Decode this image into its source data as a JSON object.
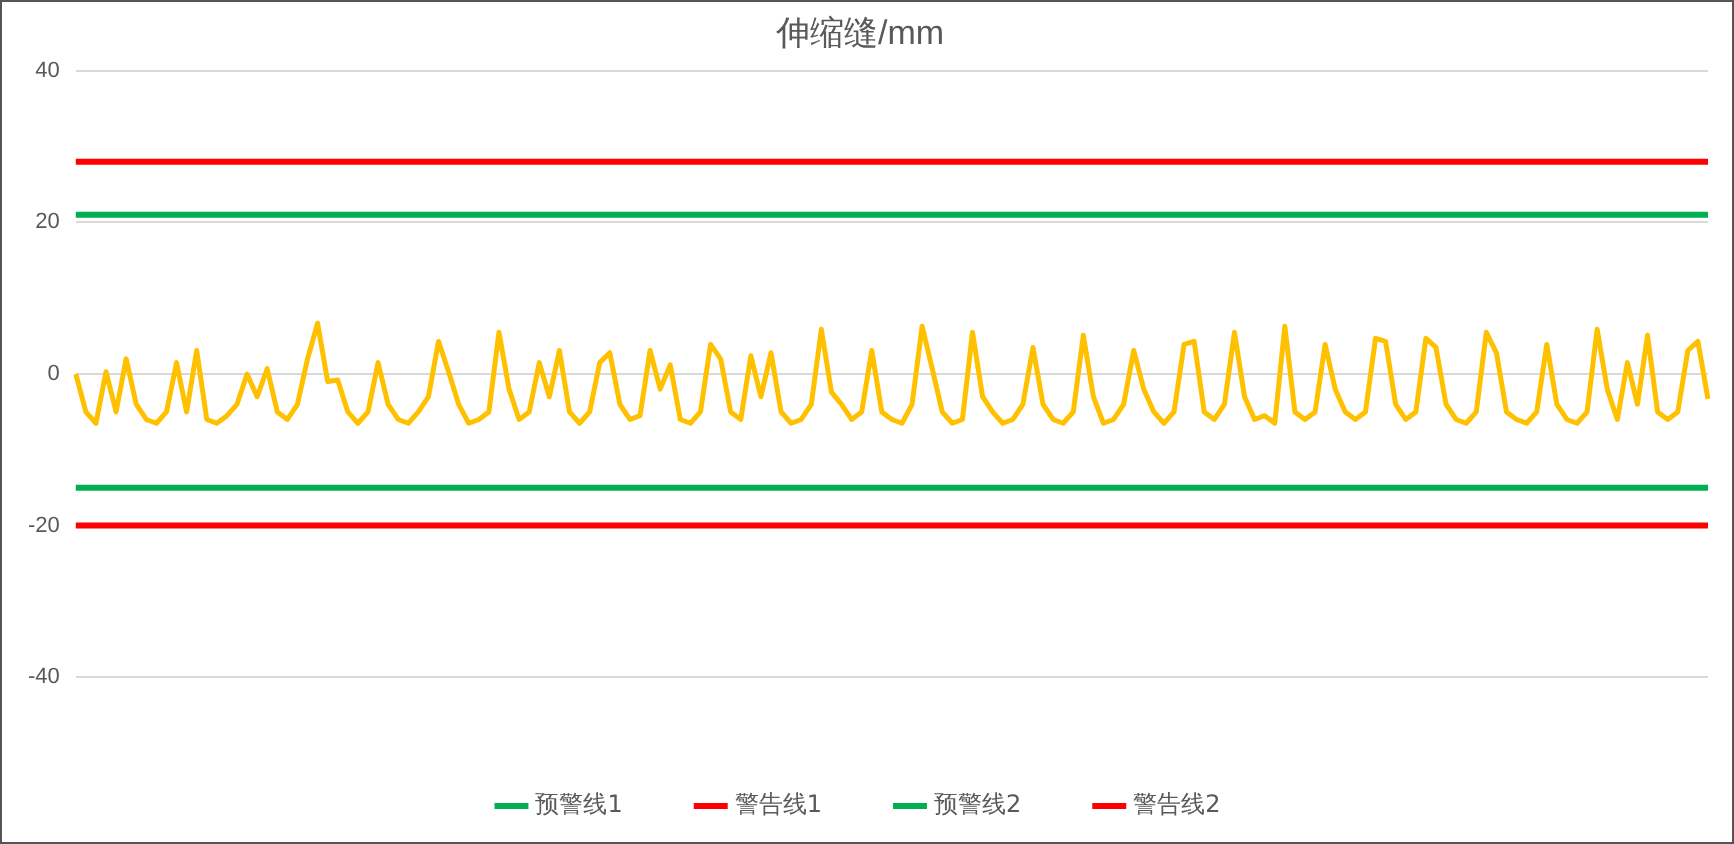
{
  "chart_data": {
    "type": "line",
    "title": "伸缩缝/mm",
    "categories": [
      null,
      null,
      null,
      null,
      null,
      null,
      null,
      null,
      null,
      null,
      null,
      null,
      null,
      null,
      null,
      null,
      null,
      null,
      null,
      null,
      null,
      null,
      null,
      null,
      null,
      null,
      null,
      null,
      null,
      null,
      null,
      null,
      null,
      null,
      null,
      null,
      null,
      null,
      null,
      null,
      null,
      null,
      null,
      null,
      null,
      null,
      null,
      null,
      null,
      null,
      null,
      null,
      null,
      null,
      null,
      null,
      null,
      null,
      null,
      null,
      null,
      null,
      null,
      null,
      null,
      null,
      null,
      null,
      null,
      null,
      null,
      null,
      null,
      null,
      null,
      null,
      null,
      null,
      null,
      null,
      null,
      null,
      null,
      null,
      null,
      null,
      null,
      null,
      null,
      null,
      null,
      null,
      null,
      null,
      null,
      null,
      null,
      null,
      null,
      null,
      null,
      null,
      null,
      null,
      null,
      null,
      null,
      null,
      null,
      null,
      null,
      null,
      null,
      null,
      null,
      null,
      null,
      null,
      null,
      null,
      null,
      null,
      null,
      null,
      null,
      null,
      null,
      null,
      null,
      null,
      null,
      null,
      null,
      null,
      null,
      null,
      null,
      null,
      null,
      null,
      null,
      null,
      null,
      null,
      null,
      null,
      null,
      null,
      null,
      null,
      null,
      null,
      null,
      null,
      null,
      null,
      null,
      null,
      null,
      null,
      null,
      null,
      null
    ],
    "series": [
      {
        "color": "#ffc000",
        "values": [
          0,
          -5,
          -6.5,
          0.3,
          -5,
          2,
          -4,
          -6,
          -6.5,
          -5,
          1.5,
          -5,
          3.1,
          -6,
          -6.5,
          -5.5,
          -4,
          0,
          -3,
          0.7,
          -5,
          -6,
          -4,
          2,
          6.7,
          -1,
          -0.8,
          -5,
          -6.5,
          -5,
          1.5,
          -4,
          -6,
          -6.5,
          -5,
          -3,
          4.3,
          0.3,
          -4,
          -6.5,
          -6,
          -5,
          5.5,
          -2,
          -6,
          -5,
          1.5,
          -3,
          3.1,
          -5,
          -6.5,
          -5,
          1.5,
          2.8,
          -4,
          -6,
          -5.5,
          3.1,
          -2,
          1.2,
          -6,
          -6.5,
          -5,
          3.9,
          2,
          -5,
          -6,
          2.4,
          -3,
          2.8,
          -5,
          -6.5,
          -6,
          -4,
          5.9,
          -2.4,
          -4,
          -6,
          -5,
          3.1,
          -5,
          -6,
          -6.5,
          -4,
          6.3,
          0.7,
          -5,
          -6.5,
          -6,
          5.5,
          -3,
          -5,
          -6.5,
          -6,
          -4,
          3.5,
          -4,
          -6,
          -6.5,
          -5,
          5.1,
          -3,
          -6.5,
          -6,
          -4,
          3.1,
          -2,
          -5,
          -6.5,
          -5,
          3.9,
          4.3,
          -5,
          -6,
          -4,
          5.5,
          -3,
          -6,
          -5.5,
          -6.5,
          6.3,
          -5,
          -6,
          -5,
          3.9,
          -2,
          -5,
          -6,
          -5,
          4.7,
          4.3,
          -4,
          -6,
          -5,
          4.7,
          3.5,
          -4,
          -6,
          -6.5,
          -5,
          5.5,
          2.8,
          -5,
          -6,
          -6.5,
          -5,
          3.9,
          -4,
          -6,
          -6.5,
          -5,
          5.9,
          -2,
          -6,
          1.5,
          -4,
          5.1,
          -5,
          -6,
          -5,
          3.1,
          4.3,
          -3.3
        ]
      }
    ],
    "ref_lines": [
      {
        "axis": "y",
        "value": 21,
        "label": "预警线1",
        "color": "#00b050"
      },
      {
        "axis": "y",
        "value": 28,
        "label": "警告线1",
        "color": "#ff0000"
      },
      {
        "axis": "y",
        "value": -15,
        "label": "预警线2",
        "color": "#00b050"
      },
      {
        "axis": "y",
        "value": -20,
        "label": "警告线2",
        "color": "#ff0000"
      }
    ],
    "ylim": [
      -40,
      40
    ],
    "yticks": [
      -40,
      -20,
      0,
      20,
      40
    ],
    "grid": "y",
    "legend": "bottom",
    "marker": "none",
    "line_style": "solid"
  }
}
